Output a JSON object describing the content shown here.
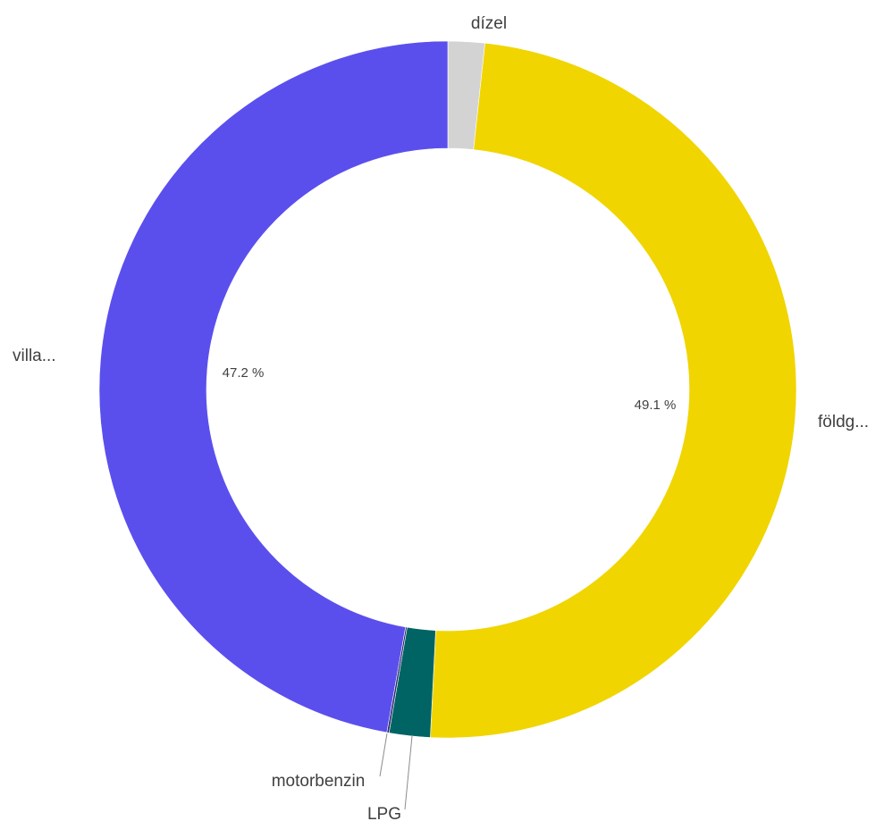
{
  "chart_data": {
    "type": "pie",
    "variant": "donut",
    "slices": [
      {
        "label": "dízel",
        "value": 1.7,
        "value_label": "",
        "color": "#d3d3d3"
      },
      {
        "label": "földg...",
        "value": 49.1,
        "value_label": "49.1 %",
        "color": "#f0d500"
      },
      {
        "label": "LPG",
        "value": 1.9,
        "value_label": "",
        "color": "#006464"
      },
      {
        "label": "motorbenzin",
        "value": 0.1,
        "value_label": "",
        "color": "#2a2a70"
      },
      {
        "label": "villa...",
        "value": 47.2,
        "value_label": "47.2 %",
        "color": "#5a4fed"
      }
    ]
  }
}
